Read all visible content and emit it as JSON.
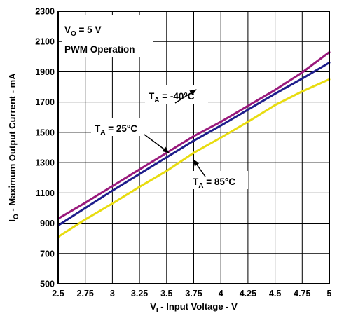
{
  "chart_data": {
    "type": "line",
    "xlabel": {
      "main": "V",
      "sub": "I",
      "rest": " - Input Voltage - V"
    },
    "ylabel": {
      "main": "I",
      "sub": "O",
      "rest": " - Maximum Output Current - mA"
    },
    "xlim": [
      2.5,
      5
    ],
    "ylim": [
      500,
      2300
    ],
    "x_ticks": [
      2.5,
      2.75,
      3,
      3.25,
      3.5,
      3.75,
      4,
      4.25,
      4.5,
      4.75,
      5
    ],
    "x_tick_labels": [
      "2.5",
      "2.75",
      "3",
      "3.25",
      "3.5",
      "3.75",
      "4",
      "4.25",
      "4.5",
      "4.75",
      "5"
    ],
    "y_ticks": [
      500,
      700,
      900,
      1100,
      1300,
      1500,
      1700,
      1900,
      2100,
      2300
    ],
    "y_tick_labels": [
      "500",
      "700",
      "900",
      "1100",
      "1300",
      "1500",
      "1700",
      "1900",
      "2100",
      "2300"
    ],
    "grid": true,
    "conditions": [
      {
        "main": "V",
        "sub": "O",
        "rest": " = 5 V"
      },
      {
        "main": "PWM Operation",
        "sub": "",
        "rest": ""
      }
    ],
    "series": [
      {
        "label": {
          "main": "T",
          "sub": "A",
          "rest": " = -40°C"
        },
        "color": "#9a1a7c",
        "x": [
          2.5,
          2.75,
          3,
          3.25,
          3.5,
          3.75,
          4,
          4.25,
          4.5,
          4.75,
          5
        ],
        "y": [
          930,
          1035,
          1145,
          1255,
          1365,
          1475,
          1570,
          1675,
          1780,
          1895,
          2030
        ]
      },
      {
        "label": {
          "main": "T",
          "sub": "A",
          "rest": " = 25°C"
        },
        "color": "#1e1e8c",
        "x": [
          2.5,
          2.75,
          3,
          3.25,
          3.5,
          3.75,
          4,
          4.25,
          4.5,
          4.75,
          5
        ],
        "y": [
          885,
          1000,
          1115,
          1225,
          1335,
          1445,
          1545,
          1650,
          1755,
          1855,
          1960
        ]
      },
      {
        "label": {
          "main": "T",
          "sub": "A",
          "rest": " = 85°C"
        },
        "color": "#e8dc10",
        "x": [
          2.5,
          2.75,
          3,
          3.25,
          3.5,
          3.75,
          4,
          4.25,
          4.5,
          4.75,
          5
        ],
        "y": [
          810,
          925,
          1030,
          1140,
          1245,
          1365,
          1465,
          1570,
          1680,
          1770,
          1850
        ]
      }
    ]
  }
}
